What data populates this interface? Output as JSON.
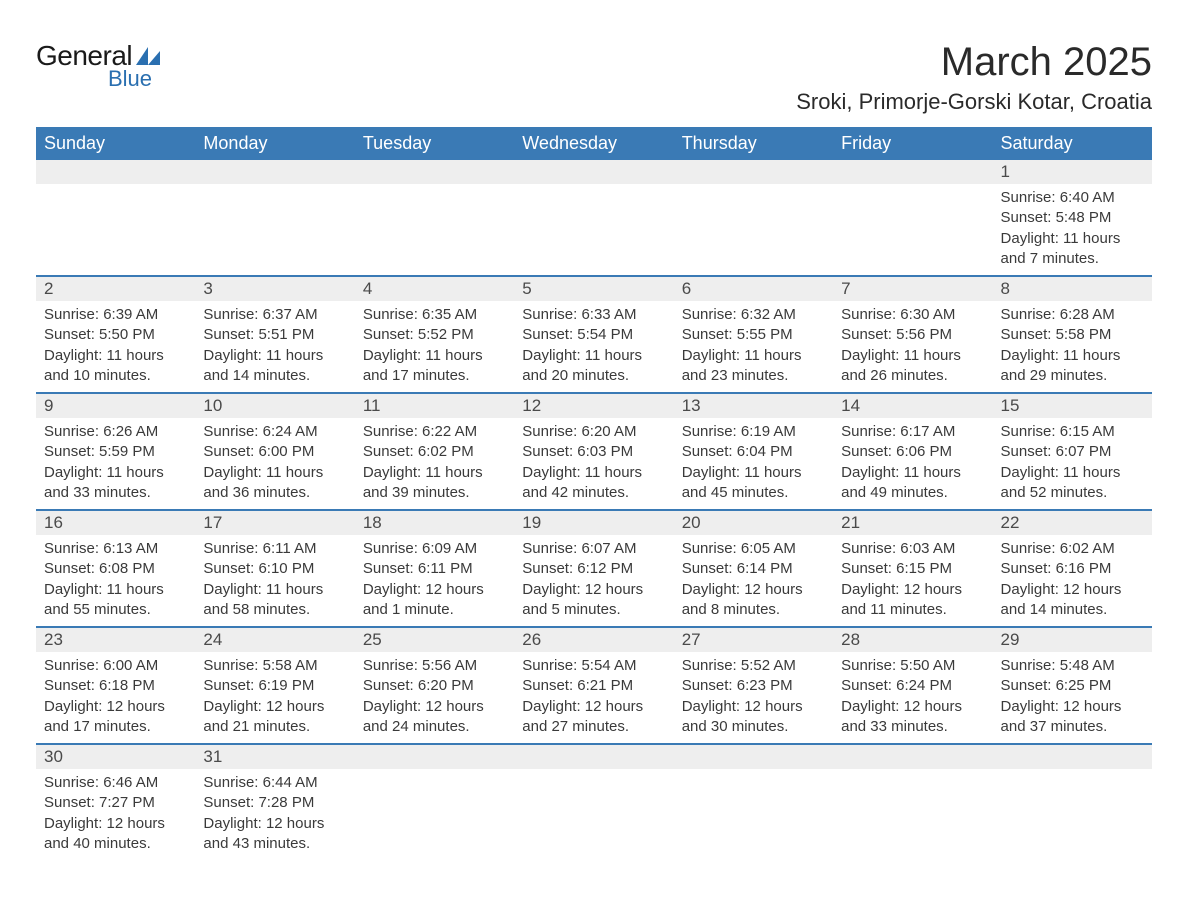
{
  "logo": {
    "general": "General",
    "blue": "Blue"
  },
  "title": "March 2025",
  "location": "Sroki, Primorje-Gorski Kotar, Croatia",
  "colors": {
    "header_bg": "#3a7ab5",
    "header_text": "#ffffff",
    "daynum_bg": "#eeeeee",
    "text": "#3a3a3a",
    "row_border": "#3a7ab5",
    "logo_blue": "#2a6fb0"
  },
  "weekdays": [
    "Sunday",
    "Monday",
    "Tuesday",
    "Wednesday",
    "Thursday",
    "Friday",
    "Saturday"
  ],
  "weeks": [
    [
      null,
      null,
      null,
      null,
      null,
      null,
      {
        "d": "1",
        "sr": "6:40 AM",
        "ss": "5:48 PM",
        "dl": "11 hours and 7 minutes."
      }
    ],
    [
      {
        "d": "2",
        "sr": "6:39 AM",
        "ss": "5:50 PM",
        "dl": "11 hours and 10 minutes."
      },
      {
        "d": "3",
        "sr": "6:37 AM",
        "ss": "5:51 PM",
        "dl": "11 hours and 14 minutes."
      },
      {
        "d": "4",
        "sr": "6:35 AM",
        "ss": "5:52 PM",
        "dl": "11 hours and 17 minutes."
      },
      {
        "d": "5",
        "sr": "6:33 AM",
        "ss": "5:54 PM",
        "dl": "11 hours and 20 minutes."
      },
      {
        "d": "6",
        "sr": "6:32 AM",
        "ss": "5:55 PM",
        "dl": "11 hours and 23 minutes."
      },
      {
        "d": "7",
        "sr": "6:30 AM",
        "ss": "5:56 PM",
        "dl": "11 hours and 26 minutes."
      },
      {
        "d": "8",
        "sr": "6:28 AM",
        "ss": "5:58 PM",
        "dl": "11 hours and 29 minutes."
      }
    ],
    [
      {
        "d": "9",
        "sr": "6:26 AM",
        "ss": "5:59 PM",
        "dl": "11 hours and 33 minutes."
      },
      {
        "d": "10",
        "sr": "6:24 AM",
        "ss": "6:00 PM",
        "dl": "11 hours and 36 minutes."
      },
      {
        "d": "11",
        "sr": "6:22 AM",
        "ss": "6:02 PM",
        "dl": "11 hours and 39 minutes."
      },
      {
        "d": "12",
        "sr": "6:20 AM",
        "ss": "6:03 PM",
        "dl": "11 hours and 42 minutes."
      },
      {
        "d": "13",
        "sr": "6:19 AM",
        "ss": "6:04 PM",
        "dl": "11 hours and 45 minutes."
      },
      {
        "d": "14",
        "sr": "6:17 AM",
        "ss": "6:06 PM",
        "dl": "11 hours and 49 minutes."
      },
      {
        "d": "15",
        "sr": "6:15 AM",
        "ss": "6:07 PM",
        "dl": "11 hours and 52 minutes."
      }
    ],
    [
      {
        "d": "16",
        "sr": "6:13 AM",
        "ss": "6:08 PM",
        "dl": "11 hours and 55 minutes."
      },
      {
        "d": "17",
        "sr": "6:11 AM",
        "ss": "6:10 PM",
        "dl": "11 hours and 58 minutes."
      },
      {
        "d": "18",
        "sr": "6:09 AM",
        "ss": "6:11 PM",
        "dl": "12 hours and 1 minute."
      },
      {
        "d": "19",
        "sr": "6:07 AM",
        "ss": "6:12 PM",
        "dl": "12 hours and 5 minutes."
      },
      {
        "d": "20",
        "sr": "6:05 AM",
        "ss": "6:14 PM",
        "dl": "12 hours and 8 minutes."
      },
      {
        "d": "21",
        "sr": "6:03 AM",
        "ss": "6:15 PM",
        "dl": "12 hours and 11 minutes."
      },
      {
        "d": "22",
        "sr": "6:02 AM",
        "ss": "6:16 PM",
        "dl": "12 hours and 14 minutes."
      }
    ],
    [
      {
        "d": "23",
        "sr": "6:00 AM",
        "ss": "6:18 PM",
        "dl": "12 hours and 17 minutes."
      },
      {
        "d": "24",
        "sr": "5:58 AM",
        "ss": "6:19 PM",
        "dl": "12 hours and 21 minutes."
      },
      {
        "d": "25",
        "sr": "5:56 AM",
        "ss": "6:20 PM",
        "dl": "12 hours and 24 minutes."
      },
      {
        "d": "26",
        "sr": "5:54 AM",
        "ss": "6:21 PM",
        "dl": "12 hours and 27 minutes."
      },
      {
        "d": "27",
        "sr": "5:52 AM",
        "ss": "6:23 PM",
        "dl": "12 hours and 30 minutes."
      },
      {
        "d": "28",
        "sr": "5:50 AM",
        "ss": "6:24 PM",
        "dl": "12 hours and 33 minutes."
      },
      {
        "d": "29",
        "sr": "5:48 AM",
        "ss": "6:25 PM",
        "dl": "12 hours and 37 minutes."
      }
    ],
    [
      {
        "d": "30",
        "sr": "6:46 AM",
        "ss": "7:27 PM",
        "dl": "12 hours and 40 minutes."
      },
      {
        "d": "31",
        "sr": "6:44 AM",
        "ss": "7:28 PM",
        "dl": "12 hours and 43 minutes."
      },
      null,
      null,
      null,
      null,
      null
    ]
  ],
  "labels": {
    "sunrise": "Sunrise:",
    "sunset": "Sunset:",
    "daylight": "Daylight:"
  }
}
